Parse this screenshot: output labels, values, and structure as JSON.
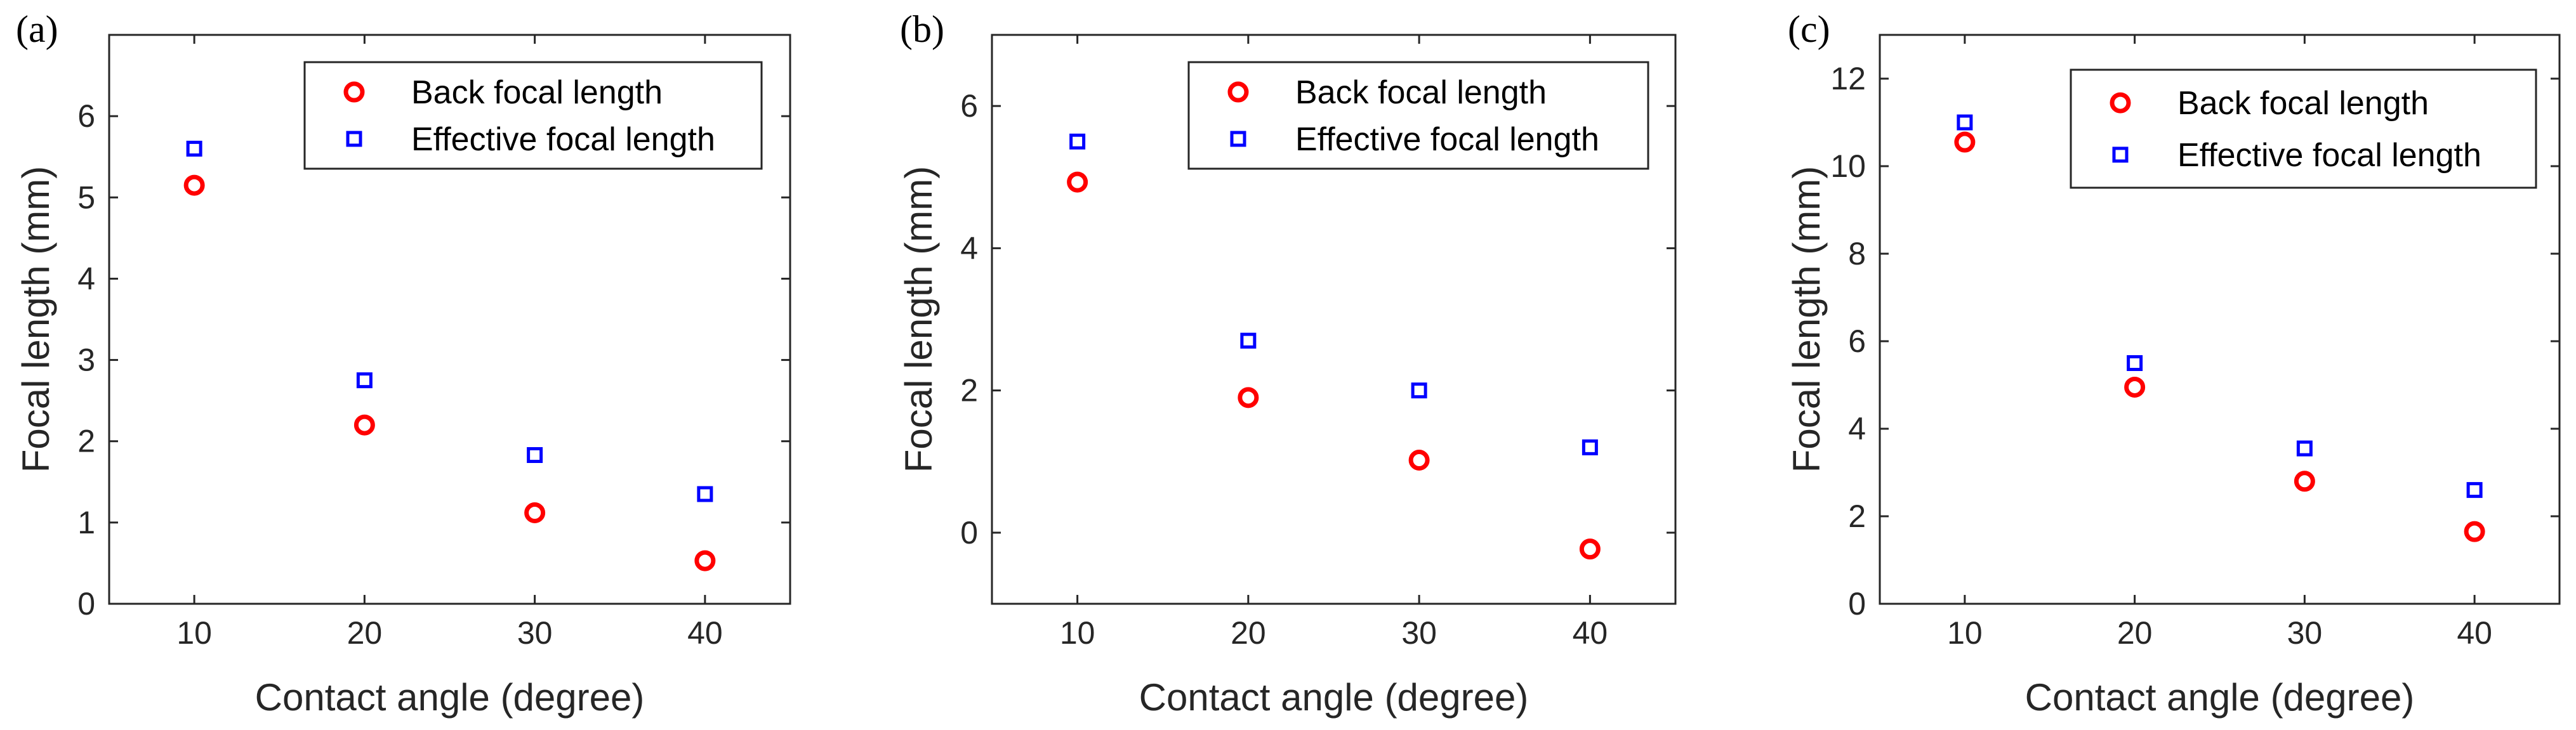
{
  "chart_data": [
    {
      "panel_label": "(a)",
      "type": "scatter",
      "xlabel": "Contact angle (degree)",
      "ylabel": "Focal length (mm)",
      "xlim": [
        5,
        45
      ],
      "ylim": [
        0,
        7
      ],
      "xticks": [
        10,
        20,
        30,
        40
      ],
      "yticks": [
        0,
        1,
        2,
        3,
        4,
        5,
        6
      ],
      "legend_position": "top-right",
      "grid": false,
      "series": [
        {
          "name": "Back focal length",
          "marker": "circle",
          "color": "#ff0000",
          "x": [
            10,
            20,
            30,
            40
          ],
          "y": [
            5.15,
            2.2,
            1.12,
            0.53
          ]
        },
        {
          "name": "Effective focal length",
          "marker": "square",
          "color": "#0000ff",
          "x": [
            10,
            20,
            30,
            40
          ],
          "y": [
            5.6,
            2.75,
            1.83,
            1.35
          ]
        }
      ]
    },
    {
      "panel_label": "(b)",
      "type": "scatter",
      "xlabel": "Contact angle (degree)",
      "ylabel": "Focal length (mm)",
      "xlim": [
        5,
        45
      ],
      "ylim": [
        -1,
        7
      ],
      "xticks": [
        10,
        20,
        30,
        40
      ],
      "yticks": [
        0,
        2,
        4,
        6
      ],
      "legend_position": "top-right",
      "grid": false,
      "series": [
        {
          "name": "Back focal length",
          "marker": "circle",
          "color": "#ff0000",
          "x": [
            10,
            20,
            30,
            40
          ],
          "y": [
            4.93,
            1.9,
            1.02,
            -0.23
          ]
        },
        {
          "name": "Effective focal length",
          "marker": "square",
          "color": "#0000ff",
          "x": [
            10,
            20,
            30,
            40
          ],
          "y": [
            5.5,
            2.7,
            2.0,
            1.2
          ]
        }
      ]
    },
    {
      "panel_label": "(c)",
      "type": "scatter",
      "xlabel": "Contact angle (degree)",
      "ylabel": "Focal length (mm)",
      "xlim": [
        5,
        45
      ],
      "ylim": [
        0,
        13
      ],
      "xticks": [
        10,
        20,
        30,
        40
      ],
      "yticks": [
        0,
        2,
        4,
        6,
        8,
        10,
        12
      ],
      "legend_position": "top-right",
      "grid": false,
      "series": [
        {
          "name": "Back focal length",
          "marker": "circle",
          "color": "#ff0000",
          "x": [
            10,
            20,
            30,
            40
          ],
          "y": [
            10.55,
            4.95,
            2.8,
            1.65
          ]
        },
        {
          "name": "Effective focal length",
          "marker": "square",
          "color": "#0000ff",
          "x": [
            10,
            20,
            30,
            40
          ],
          "y": [
            11.0,
            5.5,
            3.55,
            2.6
          ]
        }
      ]
    }
  ]
}
